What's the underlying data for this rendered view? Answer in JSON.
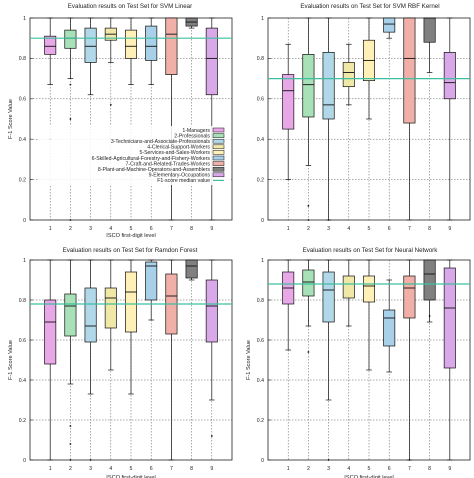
{
  "chart_data": [
    {
      "type": "box",
      "title": "Evaluation results on Test Set for SVM Linear",
      "xlabel": "ISCO first-digit level",
      "ylabel": "F-1 Score Value",
      "ylim": [
        0,
        1
      ],
      "categories": [
        "1",
        "2",
        "3",
        "4",
        "5",
        "6",
        "7",
        "8",
        "9"
      ],
      "median_line": 0.9,
      "boxes": [
        {
          "whislo": 0.67,
          "q1": 0.82,
          "med": 0.86,
          "q3": 0.91,
          "whishi": 1.0,
          "fliers": [
            0.4
          ]
        },
        {
          "whislo": 0.7,
          "q1": 0.85,
          "med": 0.9,
          "q3": 0.94,
          "whishi": 1.0,
          "fliers": [
            0.67,
            0.5,
            0.0
          ]
        },
        {
          "whislo": 0.62,
          "q1": 0.78,
          "med": 0.86,
          "q3": 0.95,
          "whishi": 1.0,
          "fliers": []
        },
        {
          "whislo": 0.78,
          "q1": 0.89,
          "med": 0.92,
          "q3": 0.95,
          "whishi": 1.0,
          "fliers": [
            0.57
          ]
        },
        {
          "whislo": 0.67,
          "q1": 0.8,
          "med": 0.86,
          "q3": 0.94,
          "whishi": 1.0,
          "fliers": []
        },
        {
          "whislo": 0.67,
          "q1": 0.79,
          "med": 0.86,
          "q3": 0.96,
          "whishi": 1.0,
          "fliers": []
        },
        {
          "whislo": 0.0,
          "q1": 0.72,
          "med": 0.92,
          "q3": 1.0,
          "whishi": 1.0,
          "fliers": []
        },
        {
          "whislo": 0.95,
          "q1": 0.96,
          "med": 0.98,
          "q3": 1.0,
          "whishi": 1.0,
          "fliers": []
        },
        {
          "whislo": 0.0,
          "q1": 0.62,
          "med": 0.8,
          "q3": 0.95,
          "whishi": 1.0,
          "fliers": []
        }
      ],
      "legend": {
        "placement": "center-right",
        "entries": [
          "1-Managers",
          "2-Professionals",
          "3-Technicians-and-Associate-Professionals",
          "4-Clerical-Support-Workers",
          "5-Services-and-Sales-Workers",
          "6-Skilled-Agricultural-Forestry-and-Fishery-Workers",
          "7-Craft-and-Related-Trades-Workers",
          "8-Plant-and-Machine-Operators-and-Assemblers",
          "9-Elementary-Occupations",
          "F1-score median value"
        ]
      }
    },
    {
      "type": "box",
      "title": "Evaluation results on Test Set for SVM RBF Kernel",
      "xlabel": "",
      "ylabel": "",
      "ylim": [
        0,
        1
      ],
      "categories": [
        "1",
        "2",
        "3",
        "4",
        "5",
        "6",
        "7",
        "8",
        "9"
      ],
      "median_line": 0.7,
      "boxes": [
        {
          "whislo": 0.2,
          "q1": 0.45,
          "med": 0.64,
          "q3": 0.72,
          "whishi": 0.87,
          "fliers": []
        },
        {
          "whislo": 0.27,
          "q1": 0.51,
          "med": 0.67,
          "q3": 0.82,
          "whishi": 1.0,
          "fliers": [
            0.07,
            0.0
          ]
        },
        {
          "whislo": 0.0,
          "q1": 0.5,
          "med": 0.57,
          "q3": 0.83,
          "whishi": 1.0,
          "fliers": [
            0.0
          ]
        },
        {
          "whislo": 0.57,
          "q1": 0.66,
          "med": 0.73,
          "q3": 0.78,
          "whishi": 0.87,
          "fliers": []
        },
        {
          "whislo": 0.5,
          "q1": 0.69,
          "med": 0.79,
          "q3": 0.89,
          "whishi": 1.0,
          "fliers": []
        },
        {
          "whislo": 0.9,
          "q1": 0.93,
          "med": 0.97,
          "q3": 1.0,
          "whishi": 1.0,
          "fliers": []
        },
        {
          "whislo": 0.0,
          "q1": 0.48,
          "med": 0.8,
          "q3": 1.0,
          "whishi": 1.0,
          "fliers": []
        },
        {
          "whislo": 0.73,
          "q1": 0.88,
          "med": 1.0,
          "q3": 1.0,
          "whishi": 1.0,
          "fliers": []
        },
        {
          "whislo": 0.0,
          "q1": 0.6,
          "med": 0.68,
          "q3": 0.83,
          "whishi": 1.0,
          "fliers": []
        }
      ]
    },
    {
      "type": "box",
      "title": "Evaluation results on Test Set for Ramdon Forest",
      "xlabel": "ISCO first-digit level",
      "ylabel": "F-1 Score Value",
      "ylim": [
        0,
        1
      ],
      "categories": [
        "1",
        "2",
        "3",
        "4",
        "5",
        "6",
        "7",
        "8",
        "9"
      ],
      "median_line": 0.78,
      "boxes": [
        {
          "whislo": 0.0,
          "q1": 0.48,
          "med": 0.69,
          "q3": 0.8,
          "whishi": 1.0,
          "fliers": []
        },
        {
          "whislo": 0.38,
          "q1": 0.62,
          "med": 0.77,
          "q3": 0.83,
          "whishi": 1.0,
          "fliers": [
            0.17,
            0.08,
            0.0
          ]
        },
        {
          "whislo": 0.33,
          "q1": 0.59,
          "med": 0.67,
          "q3": 0.86,
          "whishi": 1.0,
          "fliers": [
            0.0
          ]
        },
        {
          "whislo": 0.45,
          "q1": 0.66,
          "med": 0.81,
          "q3": 0.86,
          "whishi": 1.0,
          "fliers": []
        },
        {
          "whislo": 0.33,
          "q1": 0.64,
          "med": 0.84,
          "q3": 0.94,
          "whishi": 1.0,
          "fliers": []
        },
        {
          "whislo": 0.7,
          "q1": 0.8,
          "med": 0.97,
          "q3": 0.99,
          "whishi": 1.0,
          "fliers": []
        },
        {
          "whislo": 0.0,
          "q1": 0.63,
          "med": 0.82,
          "q3": 0.93,
          "whishi": 1.0,
          "fliers": []
        },
        {
          "whislo": 0.9,
          "q1": 0.91,
          "med": 0.97,
          "q3": 1.0,
          "whishi": 1.0,
          "fliers": []
        },
        {
          "whislo": 0.3,
          "q1": 0.59,
          "med": 0.77,
          "q3": 0.9,
          "whishi": 1.0,
          "fliers": [
            0.12
          ]
        }
      ]
    },
    {
      "type": "box",
      "title": "Evaluation results on Test Set for Neural Network",
      "xlabel": "ISCO first-digit level",
      "ylabel": "F-1 Score Value",
      "ylim": [
        0,
        1
      ],
      "categories": [
        "1",
        "2",
        "3",
        "4",
        "5",
        "6",
        "7",
        "8",
        "9"
      ],
      "median_line": 0.88,
      "boxes": [
        {
          "whislo": 0.55,
          "q1": 0.78,
          "med": 0.86,
          "q3": 0.94,
          "whishi": 1.0,
          "fliers": []
        },
        {
          "whislo": 0.67,
          "q1": 0.82,
          "med": 0.89,
          "q3": 0.95,
          "whishi": 1.0,
          "fliers": [
            0.54
          ]
        },
        {
          "whislo": 0.3,
          "q1": 0.69,
          "med": 0.85,
          "q3": 0.94,
          "whishi": 1.0,
          "fliers": [
            0.0
          ]
        },
        {
          "whislo": 0.67,
          "q1": 0.81,
          "med": 0.88,
          "q3": 0.92,
          "whishi": 1.0,
          "fliers": []
        },
        {
          "whislo": 0.45,
          "q1": 0.79,
          "med": 0.87,
          "q3": 0.92,
          "whishi": 1.0,
          "fliers": []
        },
        {
          "whislo": 0.44,
          "q1": 0.57,
          "med": 0.71,
          "q3": 0.75,
          "whishi": 0.9,
          "fliers": []
        },
        {
          "whislo": 0.0,
          "q1": 0.71,
          "med": 0.86,
          "q3": 0.92,
          "whishi": 1.0,
          "fliers": [
            0.0
          ]
        },
        {
          "whislo": 0.69,
          "q1": 0.8,
          "med": 0.93,
          "q3": 1.0,
          "whishi": 1.0,
          "fliers": [
            0.72
          ]
        },
        {
          "whislo": 0.0,
          "q1": 0.46,
          "med": 0.76,
          "q3": 0.96,
          "whishi": 1.0,
          "fliers": []
        }
      ]
    }
  ],
  "colors": {
    "boxes": [
      "#e8a8e8",
      "#a8e0b8",
      "#b0d8e8",
      "#f0e8a8",
      "#fff0b8",
      "#a8d0e8",
      "#f0b0a8",
      "#808080",
      "#d8a8e8"
    ],
    "median_line": "#3fbf9f",
    "grid": "#555555",
    "axis": "#222222"
  }
}
